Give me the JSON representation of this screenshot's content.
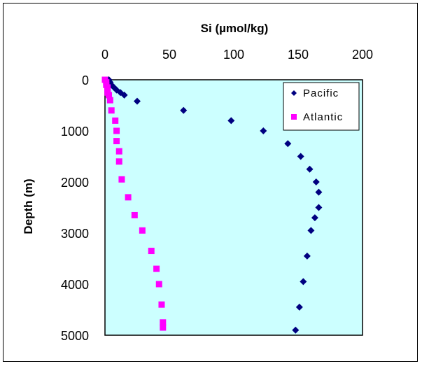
{
  "chart_data": {
    "type": "scatter",
    "title": "",
    "xlabel": "Si (µmol/kg)",
    "ylabel": "Depth (m)",
    "xlim": [
      0,
      200
    ],
    "ylim": [
      0,
      5000
    ],
    "y_inverted": true,
    "x_axis_position": "top",
    "x_ticks": [
      "0",
      "50",
      "100",
      "150",
      "200"
    ],
    "y_ticks": [
      "0",
      "1000",
      "2000",
      "3000",
      "4000",
      "5000"
    ],
    "legend_position": "top-right",
    "plot_background": "#ccffff",
    "series": [
      {
        "name": "Pacific",
        "marker": "diamond",
        "color": "#000080",
        "points": [
          [
            3,
            0
          ],
          [
            4,
            50
          ],
          [
            5,
            100
          ],
          [
            7,
            150
          ],
          [
            9,
            200
          ],
          [
            12,
            250
          ],
          [
            15,
            300
          ],
          [
            25,
            420
          ],
          [
            61,
            600
          ],
          [
            98,
            800
          ],
          [
            123,
            1000
          ],
          [
            142,
            1250
          ],
          [
            152,
            1500
          ],
          [
            159,
            1750
          ],
          [
            164,
            2000
          ],
          [
            166,
            2200
          ],
          [
            166,
            2500
          ],
          [
            163,
            2700
          ],
          [
            160,
            2950
          ],
          [
            157,
            3450
          ],
          [
            154,
            3950
          ],
          [
            151,
            4450
          ],
          [
            148,
            4900
          ]
        ]
      },
      {
        "name": "Atlantic",
        "marker": "square",
        "color": "#ff00ff",
        "points": [
          [
            0,
            0
          ],
          [
            1,
            50
          ],
          [
            1,
            100
          ],
          [
            2,
            150
          ],
          [
            2,
            200
          ],
          [
            2,
            250
          ],
          [
            3,
            300
          ],
          [
            4,
            400
          ],
          [
            5,
            600
          ],
          [
            8,
            800
          ],
          [
            9,
            1000
          ],
          [
            9,
            1200
          ],
          [
            11,
            1400
          ],
          [
            11,
            1600
          ],
          [
            13,
            1950
          ],
          [
            18,
            2300
          ],
          [
            23,
            2650
          ],
          [
            29,
            2950
          ],
          [
            36,
            3350
          ],
          [
            40,
            3700
          ],
          [
            42,
            4000
          ],
          [
            44,
            4400
          ],
          [
            45,
            4750
          ],
          [
            45,
            4850
          ]
        ]
      }
    ]
  }
}
